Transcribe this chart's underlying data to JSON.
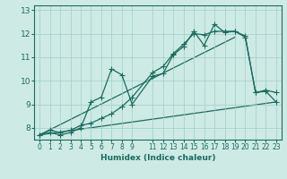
{
  "xlabel": "Humidex (Indice chaleur)",
  "ylabel": "",
  "bg_color": "#ceeae4",
  "grid_color": "#9ecec6",
  "line_color": "#1a6b60",
  "xlim": [
    -0.5,
    23.5
  ],
  "ylim": [
    7.5,
    13.2
  ],
  "yticks": [
    8,
    9,
    10,
    11,
    12,
    13
  ],
  "xticks": [
    0,
    1,
    2,
    3,
    4,
    5,
    6,
    7,
    8,
    9,
    11,
    12,
    13,
    14,
    15,
    16,
    17,
    18,
    19,
    20,
    21,
    22,
    23
  ],
  "series1_x": [
    0,
    1,
    2,
    3,
    4,
    5,
    6,
    7,
    8,
    9,
    11,
    12,
    13,
    14,
    15,
    16,
    17,
    18,
    19,
    20,
    21,
    22,
    23
  ],
  "series1_y": [
    7.7,
    7.8,
    7.7,
    7.8,
    8.0,
    9.1,
    9.3,
    10.5,
    10.25,
    9.0,
    10.2,
    10.3,
    11.1,
    11.45,
    12.1,
    11.5,
    12.4,
    12.05,
    12.1,
    11.9,
    9.5,
    9.6,
    9.5
  ],
  "series2_x": [
    0,
    1,
    2,
    3,
    4,
    5,
    6,
    7,
    8,
    9,
    11,
    12,
    13,
    14,
    15,
    16,
    17,
    18,
    19,
    20,
    21,
    22,
    23
  ],
  "series2_y": [
    7.7,
    7.9,
    7.8,
    7.9,
    8.1,
    8.2,
    8.4,
    8.6,
    8.9,
    9.3,
    10.35,
    10.6,
    11.15,
    11.55,
    12.0,
    11.95,
    12.1,
    12.1,
    12.1,
    11.85,
    9.5,
    9.55,
    9.1
  ],
  "series3_x": [
    0,
    19
  ],
  "series3_y": [
    7.7,
    11.85
  ],
  "series4_x": [
    0,
    23
  ],
  "series4_y": [
    7.7,
    9.1
  ],
  "marker_size": 2.5,
  "linewidth": 0.9
}
